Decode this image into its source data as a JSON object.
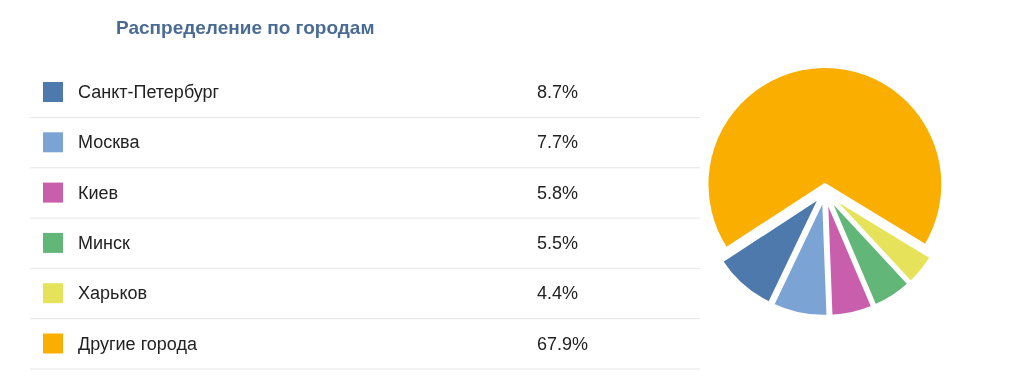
{
  "chart_data": {
    "type": "pie",
    "title": "Распределение по городам",
    "categories": [
      "Санкт-Петербург",
      "Москва",
      "Киев",
      "Минск",
      "Харьков",
      "Другие города"
    ],
    "values": [
      8.7,
      7.7,
      5.8,
      5.5,
      4.4,
      67.9
    ],
    "value_labels": [
      "8.7%",
      "7.7%",
      "5.8%",
      "5.5%",
      "4.4%",
      "67.9%"
    ],
    "colors": [
      "#4e79ad",
      "#7ba3d4",
      "#c95ead",
      "#62b678",
      "#e6e35a",
      "#f9ae00"
    ],
    "legend": "left"
  }
}
